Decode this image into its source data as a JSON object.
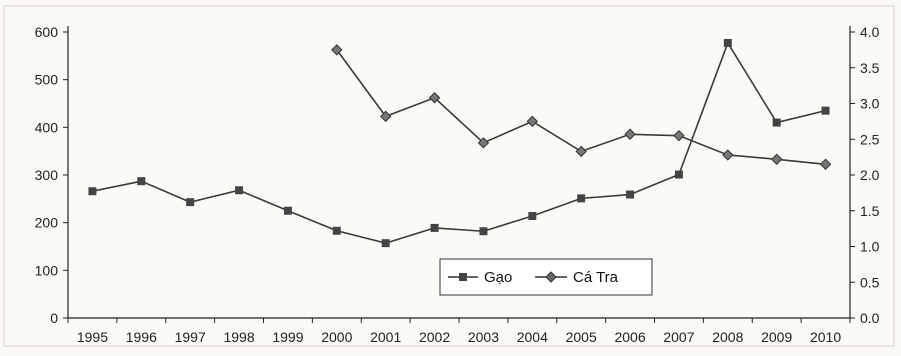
{
  "chart_data": {
    "type": "line",
    "x": [
      "1995",
      "1996",
      "1997",
      "1998",
      "1999",
      "2000",
      "2001",
      "2002",
      "2003",
      "2004",
      "2005",
      "2006",
      "2007",
      "2008",
      "2009",
      "2010"
    ],
    "series": [
      {
        "name": "Gạo",
        "axis": "left",
        "marker": "square",
        "values": [
          266,
          287,
          243,
          268,
          225,
          183,
          157,
          189,
          182,
          214,
          251,
          259,
          301,
          577,
          410,
          435
        ]
      },
      {
        "name": "Cá Tra",
        "axis": "right",
        "marker": "diamond",
        "values": [
          null,
          null,
          null,
          null,
          null,
          3.75,
          2.82,
          3.08,
          2.45,
          2.75,
          2.33,
          2.57,
          2.55,
          2.28,
          2.22,
          2.15
        ]
      }
    ],
    "ylim_left": [
      0,
      600
    ],
    "yticks_left": [
      0,
      100,
      200,
      300,
      400,
      500,
      600
    ],
    "ylim_right": [
      0.0,
      4.0
    ],
    "yticks_right": [
      "0.0",
      "0.5",
      "1.0",
      "1.5",
      "2.0",
      "2.5",
      "3.0",
      "3.5",
      "4.0"
    ],
    "legend_position": "bottom-center",
    "grid": false,
    "colors": {
      "line": "#3a3a3a",
      "axis": "#222222"
    }
  }
}
